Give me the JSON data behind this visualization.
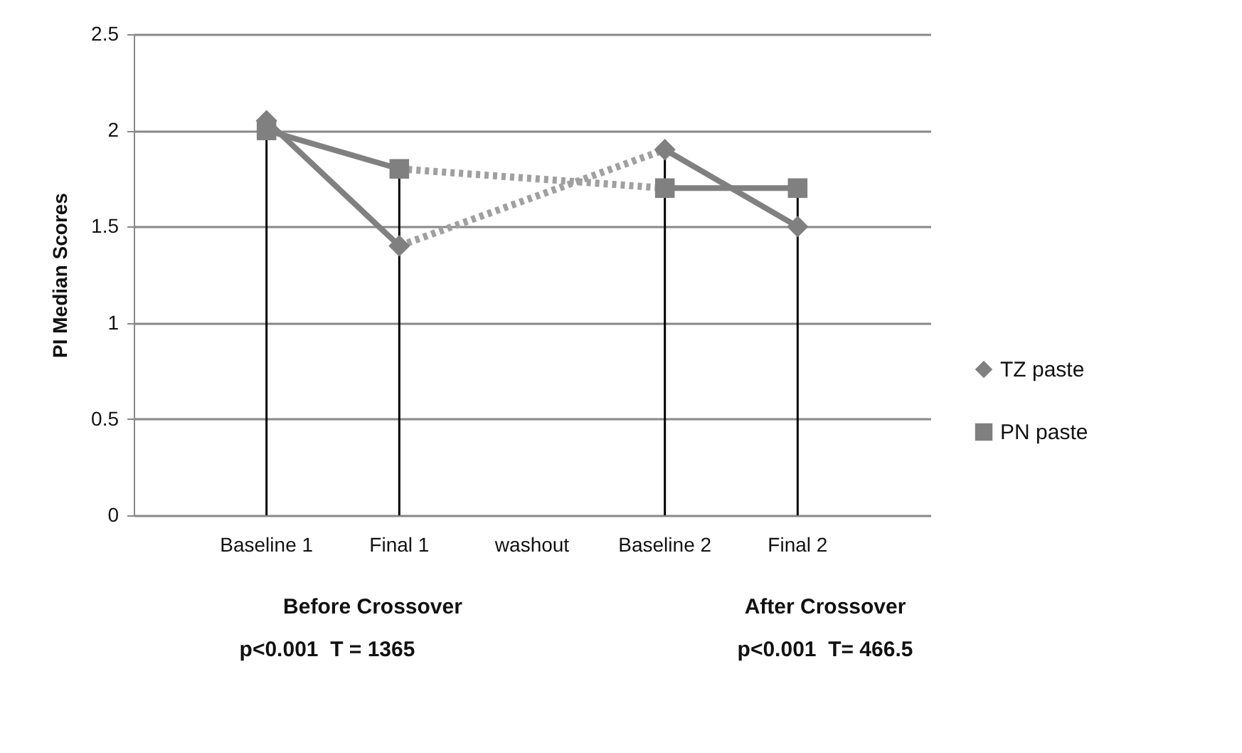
{
  "chart_data": {
    "type": "line",
    "ylabel": "PI Median Scores",
    "categories": [
      "Baseline 1",
      "Final 1",
      "washout",
      "Baseline 2",
      "Final 2"
    ],
    "series": [
      {
        "name": "TZ paste",
        "color": "#808080",
        "marker": "diamond",
        "values": [
          2.05,
          1.4,
          null,
          1.9,
          1.5
        ]
      },
      {
        "name": "PN paste",
        "color": "#808080",
        "marker": "square",
        "values": [
          2.0,
          1.8,
          null,
          1.7,
          1.7
        ]
      },
      {
        "color": "#a0a0a0",
        "line_style": "dotted",
        "marker": "none",
        "x": [
          "Final 1",
          "Baseline 2"
        ],
        "values": [
          1.4,
          1.9
        ]
      },
      {
        "color": "#a0a0a0",
        "line_style": "dotted",
        "marker": "none",
        "x": [
          "Final 1",
          "Baseline 2"
        ],
        "values": [
          1.8,
          1.7
        ]
      }
    ],
    "ref_lines": [
      {
        "axis": "x",
        "value": "Baseline 1",
        "color": "#000000"
      },
      {
        "axis": "x",
        "value": "Final 1",
        "color": "#000000"
      },
      {
        "axis": "x",
        "value": "Baseline 2",
        "color": "#000000"
      },
      {
        "axis": "x",
        "value": "Final 2",
        "color": "#000000"
      }
    ],
    "ylim": [
      0,
      2.5
    ],
    "yticks": [
      0,
      0.5,
      1,
      1.5,
      2,
      2.5
    ],
    "grid": "y",
    "legend": "right",
    "annotations": [
      "Before Crossover",
      "p<0.001  T = 1365",
      "After Crossover",
      "p<0.001  T= 466.5"
    ]
  }
}
